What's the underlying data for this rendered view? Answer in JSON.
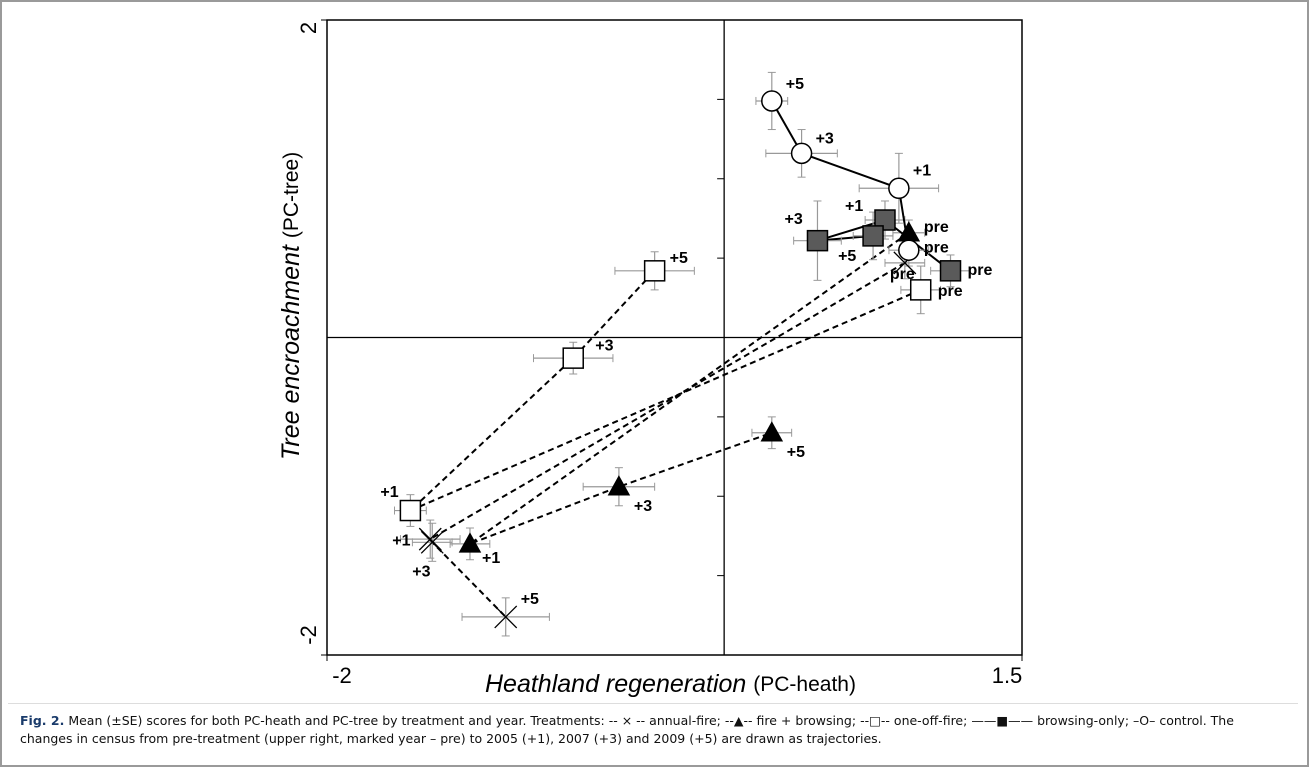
{
  "chart_data": {
    "type": "scatter",
    "xlabel": {
      "main": "Heathland regeneration",
      "sub": "(PC-heath)"
    },
    "ylabel": {
      "main": "Tree encroachment",
      "sub": "(PC-tree)"
    },
    "xlim": [
      -2,
      1.5
    ],
    "xticks": [
      -2,
      1.5
    ],
    "ylim": [
      -2,
      2
    ],
    "yticks": [
      -2,
      2
    ],
    "y_minor_ticks": [
      -1.5,
      -1,
      -0.5,
      0.5,
      1,
      1.5
    ],
    "series": [
      {
        "name": "annual-fire",
        "marker": "cross",
        "color": "#000000",
        "dashed": true,
        "point_labels": [
          "pre",
          "+1",
          "+3",
          "+5"
        ],
        "x": [
          0.91,
          -1.48,
          -1.47,
          -1.1
        ],
        "values": [
          0.47,
          -1.27,
          -1.29,
          -1.76
        ],
        "xerr": [
          0.1,
          0.15,
          0.1,
          0.22
        ],
        "yerr": [
          0.1,
          0.12,
          0.12,
          0.12
        ]
      },
      {
        "name": "fire + browsing",
        "marker": "triangle",
        "color": "#000000",
        "dashed": true,
        "point_labels": [
          "pre",
          "+1",
          "+3",
          "+5"
        ],
        "x": [
          0.93,
          -1.28,
          -0.53,
          0.24
        ],
        "values": [
          0.66,
          -1.3,
          -0.94,
          -0.6
        ],
        "xerr": [
          0.08,
          0.1,
          0.18,
          0.1
        ],
        "yerr": [
          0.08,
          0.1,
          0.12,
          0.1
        ]
      },
      {
        "name": "one-off-fire",
        "marker": "square-open",
        "color": "#000000",
        "dashed": true,
        "point_labels": [
          "pre",
          "+1",
          "+3",
          "+5"
        ],
        "x": [
          0.99,
          -1.58,
          -0.76,
          -0.35
        ],
        "values": [
          0.3,
          -1.09,
          -0.13,
          0.42
        ],
        "xerr": [
          0.1,
          0.08,
          0.2,
          0.2
        ],
        "yerr": [
          0.15,
          0.1,
          0.1,
          0.12
        ]
      },
      {
        "name": "browsing-only",
        "marker": "square-filled",
        "color": "#5a5a5a",
        "dashed": false,
        "point_labels": [
          "pre",
          "+1",
          "+3",
          "+5"
        ],
        "x": [
          1.14,
          0.81,
          0.47,
          0.75
        ],
        "values": [
          0.42,
          0.74,
          0.61,
          0.64
        ],
        "xerr": [
          0.1,
          0.1,
          0.12,
          0.1
        ],
        "yerr": [
          0.1,
          0.12,
          0.25,
          0.15
        ]
      },
      {
        "name": "control",
        "marker": "circle",
        "color": "#000000",
        "dashed": false,
        "point_labels": [
          "pre",
          "+1",
          "+3",
          "+5"
        ],
        "x": [
          0.93,
          0.88,
          0.39,
          0.24
        ],
        "values": [
          0.55,
          0.94,
          1.16,
          1.49
        ],
        "xerr": [
          0.1,
          0.2,
          0.18,
          0.08
        ],
        "yerr": [
          0.1,
          0.22,
          0.15,
          0.18
        ]
      }
    ]
  },
  "caption": {
    "label": "Fig. 2.",
    "intro": "Mean (±SE) scores for both PC-heath and PC-tree by treatment and year. Treatments:",
    "symbols": [
      "-- × --",
      "--▲--",
      "--□--",
      "——■——",
      "–O–"
    ],
    "separators": [
      ";",
      ";",
      ";",
      ";",
      "."
    ],
    "outro": "The changes in census from pre-treatment (upper right, marked year – pre) to 2005 (+1), 2007 (+3) and 2009 (+5) are drawn as trajectories."
  }
}
